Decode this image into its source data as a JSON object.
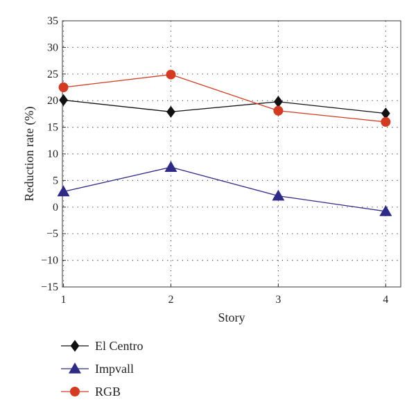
{
  "chart_data": {
    "type": "line",
    "title": "",
    "xlabel": "Story",
    "ylabel": "Reduction rate (%)",
    "x": [
      1,
      2,
      3,
      4
    ],
    "x_tick_labels": [
      "1",
      "2",
      "3",
      "4"
    ],
    "xlim": [
      0.99,
      4.14
    ],
    "ylim": [
      -15,
      35
    ],
    "yticks": [
      35,
      30,
      25,
      20,
      15,
      10,
      5,
      0,
      -5,
      -10,
      -15
    ],
    "y_tick_labels": [
      "35",
      "30",
      "25",
      "20",
      "15",
      "10",
      "5",
      "0",
      "−5",
      "−10",
      "−15"
    ],
    "grid": true,
    "legend_position": "bottom-left",
    "series": [
      {
        "name": "El Centro",
        "values": [
          20.1,
          17.9,
          19.8,
          17.6
        ],
        "color": "#111111",
        "marker": "diamond"
      },
      {
        "name": "Impvall",
        "values": [
          2.9,
          7.5,
          2.1,
          -0.8
        ],
        "color": "#2e2a86",
        "marker": "triangle"
      },
      {
        "name": "RGB",
        "values": [
          22.5,
          24.9,
          18.1,
          16.0
        ],
        "color": "#d23a22",
        "marker": "circle"
      }
    ]
  }
}
